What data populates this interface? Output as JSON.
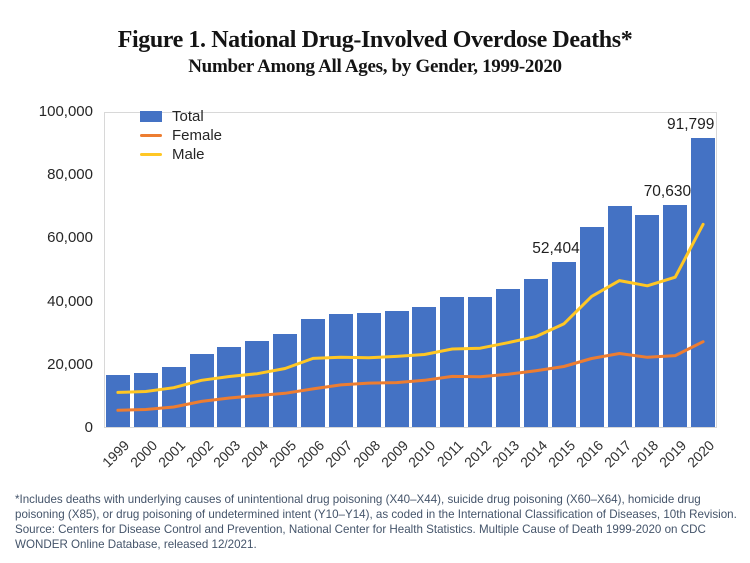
{
  "title": "Figure 1. National Drug-Involved Overdose Deaths*",
  "subtitle": "Number Among All Ages, by Gender, 1999-2020",
  "colors": {
    "total": "#4472C4",
    "female": "#ED7D31",
    "male": "#FFC724",
    "axis_text": "#262626",
    "annotation_text": "#1f1f1f",
    "footnote_text": "#44546A",
    "plot_border": "#d8d8d8"
  },
  "legend": [
    {
      "label": "Total"
    },
    {
      "label": "Female"
    },
    {
      "label": "Male"
    }
  ],
  "chart_data": {
    "type": "bar",
    "title": "Figure 1. National Drug-Involved Overdose Deaths*",
    "subtitle": "Number Among All Ages, by Gender, 1999-2020",
    "categories": [
      "1999",
      "2000",
      "2001",
      "2002",
      "2003",
      "2004",
      "2005",
      "2006",
      "2007",
      "2008",
      "2009",
      "2010",
      "2011",
      "2012",
      "2013",
      "2014",
      "2015",
      "2016",
      "2017",
      "2018",
      "2019",
      "2020"
    ],
    "series": [
      {
        "name": "Total",
        "type": "bar",
        "color": "#4472C4",
        "values": [
          16849,
          17415,
          19394,
          23518,
          25785,
          27424,
          29813,
          34425,
          36010,
          36450,
          37004,
          38329,
          41340,
          41502,
          43982,
          47055,
          52404,
          63632,
          70237,
          67367,
          70630,
          91799
        ]
      },
      {
        "name": "Female",
        "type": "line",
        "color": "#ED7D31",
        "values": [
          5591,
          5852,
          6631,
          8427,
          9491,
          10241,
          10977,
          12388,
          13628,
          14212,
          14357,
          15080,
          16333,
          16243,
          16998,
          18136,
          19447,
          21987,
          23577,
          22375,
          22924,
          27322
        ]
      },
      {
        "name": "Male",
        "type": "line",
        "color": "#FFC724",
        "values": [
          11258,
          11563,
          12763,
          15091,
          16294,
          17183,
          18836,
          22037,
          22382,
          22238,
          22647,
          23249,
          25007,
          25259,
          26984,
          28919,
          32957,
          41645,
          46660,
          44992,
          47706,
          64477
        ]
      }
    ],
    "annotations": [
      {
        "category": "2015",
        "text": "52,404"
      },
      {
        "category": "2019",
        "text": "70,630"
      },
      {
        "category": "2020",
        "text": "91,799"
      }
    ],
    "y_axis": {
      "min": 0,
      "max": 100000,
      "step": 20000,
      "tick_labels": [
        "0",
        "20,000",
        "40,000",
        "60,000",
        "80,000",
        "100,000"
      ]
    },
    "x_tick_rotation": 45,
    "grid": false,
    "legend_position": "top-left-inside",
    "xlabel": "",
    "ylabel": ""
  },
  "footnote": {
    "asterisk_note": "*Includes deaths with underlying causes of unintentional drug poisoning (X40–X44), suicide drug poisoning (X60–X64), homicide drug poisoning (X85), or drug poisoning of undetermined intent (Y10–Y14), as coded in the International Classification of Diseases, 10th Revision.",
    "source_note": "Source: Centers for Disease Control and Prevention, National Center for Health Statistics. Multiple Cause of Death 1999-2020 on CDC WONDER Online Database, released 12/2021."
  }
}
